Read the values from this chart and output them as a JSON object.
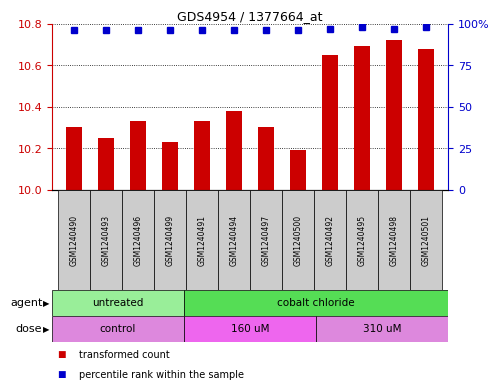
{
  "title": "GDS4954 / 1377664_at",
  "samples": [
    "GSM1240490",
    "GSM1240493",
    "GSM1240496",
    "GSM1240499",
    "GSM1240491",
    "GSM1240494",
    "GSM1240497",
    "GSM1240500",
    "GSM1240492",
    "GSM1240495",
    "GSM1240498",
    "GSM1240501"
  ],
  "bar_values": [
    10.3,
    10.25,
    10.33,
    10.23,
    10.33,
    10.38,
    10.3,
    10.19,
    10.65,
    10.69,
    10.72,
    10.68
  ],
  "percentile_values": [
    96,
    96,
    96,
    96,
    96,
    96,
    96,
    96,
    97,
    98,
    97,
    98
  ],
  "bar_color": "#cc0000",
  "percentile_color": "#0000cc",
  "ylim_left": [
    10.0,
    10.8
  ],
  "ylim_right": [
    0,
    100
  ],
  "yticks_left": [
    10.0,
    10.2,
    10.4,
    10.6,
    10.8
  ],
  "yticks_right": [
    0,
    25,
    50,
    75,
    100
  ],
  "ytick_labels_right": [
    "0",
    "25",
    "50",
    "75",
    "100%"
  ],
  "agent_groups": [
    {
      "label": "untreated",
      "start": 0,
      "end": 4,
      "color": "#99ee99"
    },
    {
      "label": "cobalt chloride",
      "start": 4,
      "end": 12,
      "color": "#55dd55"
    }
  ],
  "dose_groups": [
    {
      "label": "control",
      "start": 0,
      "end": 4,
      "color": "#dd88dd"
    },
    {
      "label": "160 uM",
      "start": 4,
      "end": 8,
      "color": "#ee66ee"
    },
    {
      "label": "310 uM",
      "start": 8,
      "end": 12,
      "color": "#dd88dd"
    }
  ],
  "legend_items": [
    {
      "color": "#cc0000",
      "label": "transformed count"
    },
    {
      "color": "#0000cc",
      "label": "percentile rank within the sample"
    }
  ],
  "bg_color": "#ffffff",
  "plot_bg_color": "#ffffff",
  "grid_color": "#000000",
  "sample_box_color": "#cccccc",
  "row_label_agent": "agent",
  "row_label_dose": "dose",
  "bar_width": 0.5
}
